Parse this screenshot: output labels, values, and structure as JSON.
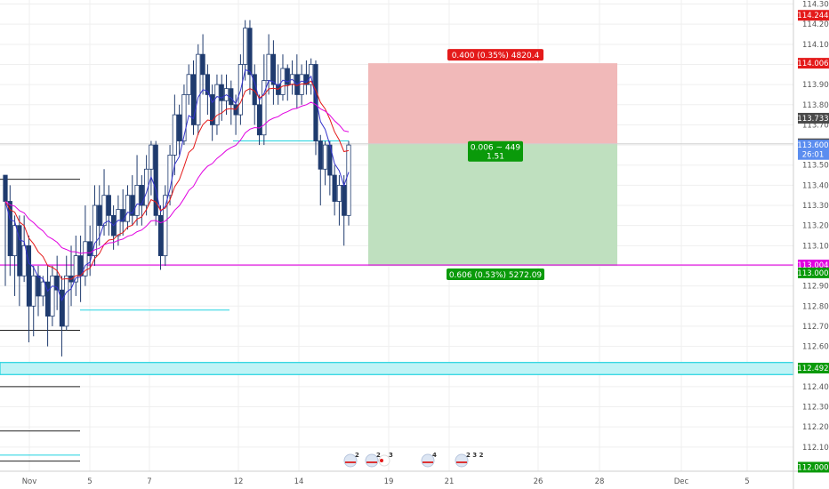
{
  "chart_data": {
    "type": "candlestick",
    "instrument_note": "",
    "x_axis": {
      "ticks": [
        "Nov",
        "5",
        "7",
        "12",
        "14",
        "19",
        "21",
        "26",
        "28",
        "Dec",
        "5"
      ]
    },
    "y_axis": {
      "range": [
        112.0,
        114.3
      ],
      "ticks": [
        "114.300",
        "114.200",
        "114.100",
        "114.000",
        "113.900",
        "113.800",
        "113.700",
        "113.600",
        "113.500",
        "113.400",
        "113.300",
        "113.200",
        "113.100",
        "113.000",
        "112.900",
        "112.800",
        "112.700",
        "112.600",
        "112.500",
        "112.400",
        "112.300",
        "112.200",
        "112.100"
      ]
    },
    "price_badges": [
      {
        "label": "114.244",
        "value": 114.244,
        "color": "#e41a1a"
      },
      {
        "label": "114.006",
        "value": 114.006,
        "color": "#e41a1a"
      },
      {
        "label": "113.733",
        "value": 113.733,
        "color": "#4a4a4a"
      },
      {
        "label": "113.606",
        "value": 113.606,
        "color": "#4a4a4a"
      },
      {
        "label": "113.600",
        "value": 113.6,
        "color": "#5b8def"
      },
      {
        "label": "26:01",
        "value": 113.553,
        "color": "#5b8def"
      },
      {
        "label": "113.004",
        "value": 113.004,
        "color": "#e000e0"
      },
      {
        "label": "113.000",
        "value": 112.965,
        "color": "#0a9a0a"
      },
      {
        "label": "112.492",
        "value": 112.492,
        "color": "#0a9a0a"
      },
      {
        "label": "112.000",
        "value": 112.0,
        "color": "#0a9a0a"
      }
    ],
    "position_tool": {
      "entry": 113.606,
      "stop": 114.006,
      "target": 113.0,
      "stop_label": "0.400 (0.35%) 4820.4",
      "mid_label_1": "0.006 ~ 449",
      "mid_label_2": "1.51",
      "target_label": "0.606 (0.53%) 5272.09"
    },
    "horizontal_lines": [
      {
        "name": "magenta-support",
        "value": 113.004,
        "color": "#e000e0"
      },
      {
        "name": "cyan-zone",
        "from": 112.46,
        "to": 112.52,
        "color": "#22d3e0"
      }
    ],
    "candles": [
      [
        113.45,
        113.32,
        113.45,
        112.9
      ],
      [
        113.32,
        113.05,
        113.4,
        112.95
      ],
      [
        113.05,
        113.2,
        113.25,
        112.85
      ],
      [
        113.2,
        112.95,
        113.25,
        112.8
      ],
      [
        112.95,
        113.1,
        113.25,
        112.92
      ],
      [
        113.1,
        112.8,
        113.15,
        112.62
      ],
      [
        112.8,
        112.95,
        113.0,
        112.65
      ],
      [
        112.95,
        112.85,
        113.0,
        112.75
      ],
      [
        112.85,
        112.92,
        112.95,
        112.8
      ],
      [
        112.92,
        112.75,
        113.0,
        112.6
      ],
      [
        112.75,
        112.95,
        113.0,
        112.7
      ],
      [
        112.95,
        112.88,
        113.05,
        112.78
      ],
      [
        112.88,
        112.7,
        112.95,
        112.55
      ],
      [
        112.7,
        112.95,
        113.05,
        112.68
      ],
      [
        112.95,
        112.92,
        113.1,
        112.8
      ],
      [
        112.92,
        113.05,
        113.15,
        112.85
      ],
      [
        113.05,
        112.95,
        113.15,
        112.82
      ],
      [
        112.95,
        113.12,
        113.3,
        112.9
      ],
      [
        113.12,
        113.05,
        113.2,
        112.95
      ],
      [
        113.05,
        113.3,
        113.4,
        113.0
      ],
      [
        113.3,
        113.2,
        113.4,
        113.1
      ],
      [
        113.2,
        113.35,
        113.48,
        113.15
      ],
      [
        113.35,
        113.25,
        113.4,
        113.15
      ],
      [
        113.25,
        113.15,
        113.3,
        113.08
      ],
      [
        113.15,
        113.28,
        113.35,
        113.1
      ],
      [
        113.28,
        113.22,
        113.38,
        113.15
      ],
      [
        113.22,
        113.35,
        113.4,
        113.18
      ],
      [
        113.35,
        113.25,
        113.45,
        113.2
      ],
      [
        113.25,
        113.4,
        113.55,
        113.2
      ],
      [
        113.4,
        113.3,
        113.45,
        113.2
      ],
      [
        113.3,
        113.48,
        113.55,
        113.25
      ],
      [
        113.48,
        113.6,
        113.62,
        113.35
      ],
      [
        113.6,
        113.25,
        113.62,
        113.2
      ],
      [
        113.25,
        113.05,
        113.3,
        112.98
      ],
      [
        113.05,
        113.35,
        113.4,
        113.0
      ],
      [
        113.35,
        113.55,
        113.6,
        113.3
      ],
      [
        113.55,
        113.75,
        113.85,
        113.45
      ],
      [
        113.75,
        113.62,
        113.8,
        113.55
      ],
      [
        113.62,
        113.85,
        113.9,
        113.6
      ],
      [
        113.85,
        113.95,
        114.0,
        113.8
      ],
      [
        113.95,
        113.7,
        114.02,
        113.65
      ],
      [
        113.7,
        114.05,
        114.1,
        113.65
      ],
      [
        114.05,
        113.95,
        114.15,
        113.85
      ],
      [
        113.95,
        113.85,
        114.0,
        113.75
      ],
      [
        113.85,
        113.7,
        113.9,
        113.62
      ],
      [
        113.7,
        113.9,
        113.95,
        113.65
      ],
      [
        113.9,
        113.82,
        113.95,
        113.72
      ],
      [
        113.82,
        113.88,
        113.95,
        113.75
      ],
      [
        113.88,
        113.8,
        113.92,
        113.7
      ],
      [
        113.8,
        113.75,
        113.85,
        113.65
      ],
      [
        113.75,
        114.0,
        114.05,
        113.7
      ],
      [
        114.0,
        114.18,
        114.22,
        113.92
      ],
      [
        114.18,
        113.95,
        114.22,
        113.85
      ],
      [
        113.95,
        113.8,
        114.0,
        113.7
      ],
      [
        113.8,
        113.65,
        113.85,
        113.6
      ],
      [
        113.65,
        113.92,
        114.05,
        113.6
      ],
      [
        113.92,
        114.05,
        114.15,
        113.85
      ],
      [
        114.05,
        113.9,
        114.12,
        113.8
      ],
      [
        113.9,
        113.85,
        114.0,
        113.8
      ],
      [
        113.85,
        113.98,
        114.05,
        113.82
      ],
      [
        113.98,
        113.9,
        114.0,
        113.82
      ],
      [
        113.9,
        113.95,
        114.02,
        113.85
      ],
      [
        113.95,
        113.85,
        114.05,
        113.78
      ],
      [
        113.85,
        113.95,
        114.0,
        113.8
      ],
      [
        113.95,
        113.9,
        114.02,
        113.85
      ],
      [
        113.9,
        114.0,
        114.03,
        113.85
      ],
      [
        114.0,
        113.62,
        114.02,
        113.55
      ],
      [
        113.62,
        113.48,
        113.65,
        113.3
      ],
      [
        113.48,
        113.6,
        113.62,
        113.4
      ],
      [
        113.6,
        113.45,
        113.62,
        113.35
      ],
      [
        113.45,
        113.32,
        113.5,
        113.25
      ],
      [
        113.32,
        113.4,
        113.45,
        113.2
      ],
      [
        113.4,
        113.25,
        113.45,
        113.1
      ],
      [
        113.25,
        113.6,
        113.62,
        113.2
      ]
    ],
    "events": [
      {
        "label": "2"
      },
      {
        "label": "2"
      },
      {
        "label": "3"
      },
      {
        "label": "4"
      },
      {
        "label": "2 3 2"
      }
    ]
  },
  "colors": {
    "candle_body": "#1f3b6e",
    "candle_up_fill": "#ffffff",
    "ema_fast": "#3333cc",
    "ema_mid": "#e41a1a",
    "ema_slow": "#e000e0",
    "loss_zone": "#f1b9b9",
    "profit_zone": "#bfe0bf",
    "grid": "#efefef",
    "axis_text": "#555555"
  }
}
